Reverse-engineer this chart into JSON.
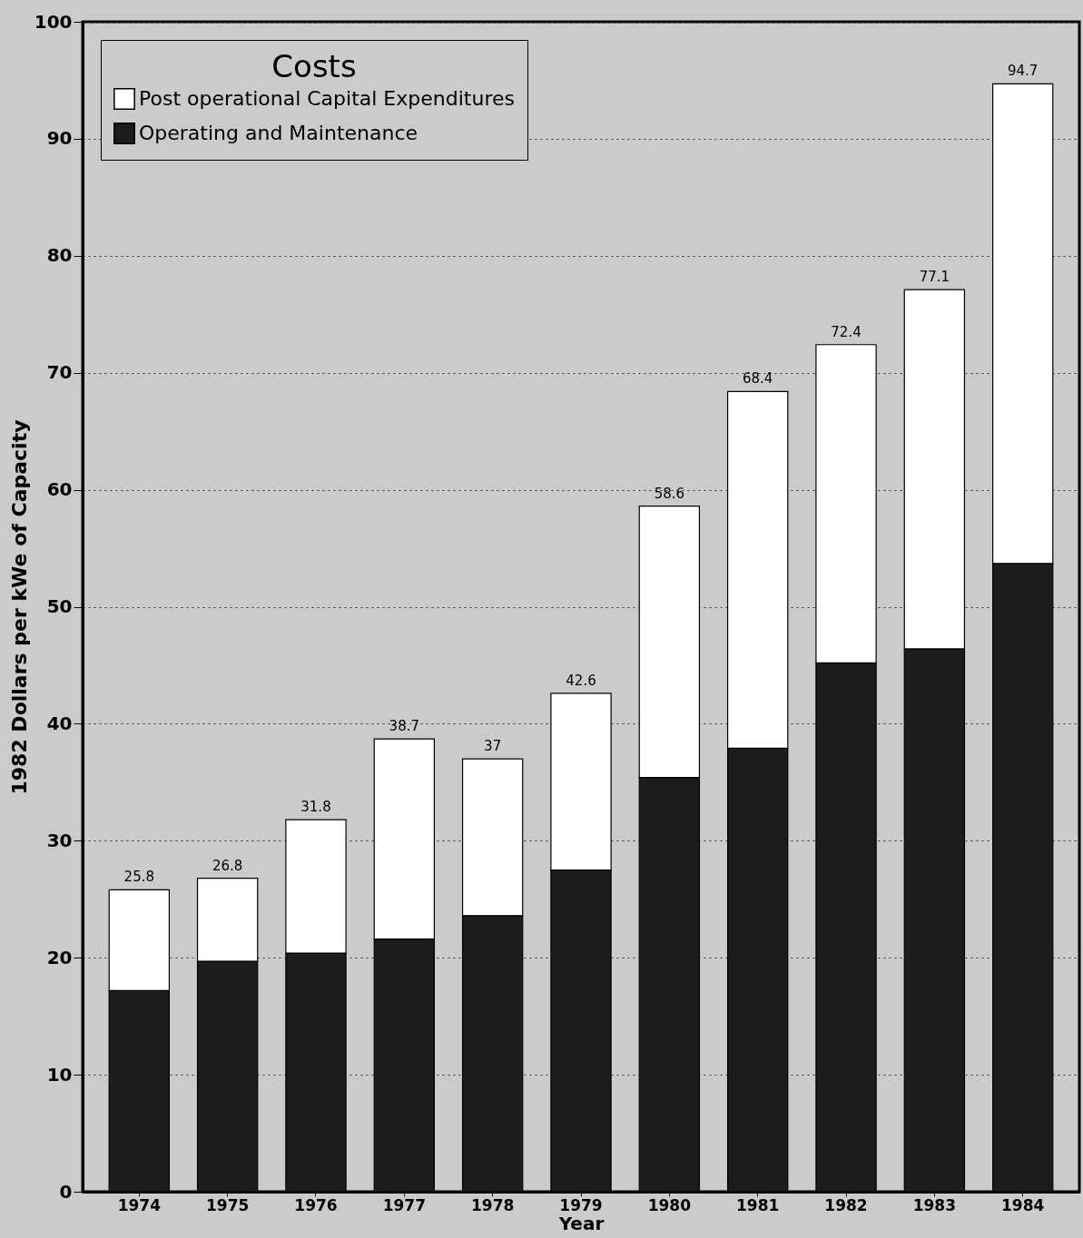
{
  "chart_data": {
    "type": "bar",
    "stacked": true,
    "xlabel": "Year",
    "ylabel": "1982 Dollars per kWe of Capacity",
    "legend_title": "Costs",
    "categories": [
      "1974",
      "1975",
      "1976",
      "1977",
      "1978",
      "1979",
      "1980",
      "1981",
      "1982",
      "1983",
      "1984"
    ],
    "series": [
      {
        "name": "Operating and Maintenance",
        "color": "#1c1c1c",
        "values": [
          17.2,
          19.7,
          20.4,
          21.6,
          23.6,
          27.5,
          35.4,
          37.9,
          45.2,
          46.4,
          53.7
        ]
      },
      {
        "name": "Post operational Capital Expenditures",
        "color": "#ffffff",
        "values": [
          8.6,
          7.1,
          11.4,
          17.1,
          13.4,
          15.1,
          23.2,
          30.5,
          27.2,
          30.7,
          41.0
        ]
      }
    ],
    "totals": [
      "25.8",
      "26.8",
      "31.8",
      "38.7",
      "37",
      "42.6",
      "58.6",
      "68.4",
      "72.4",
      "77.1",
      "94.7"
    ],
    "ylim": [
      0,
      100
    ],
    "yticks": [
      0,
      10,
      20,
      30,
      40,
      50,
      60,
      70,
      80,
      90,
      100
    ],
    "grid": "y",
    "legend": "top left"
  }
}
